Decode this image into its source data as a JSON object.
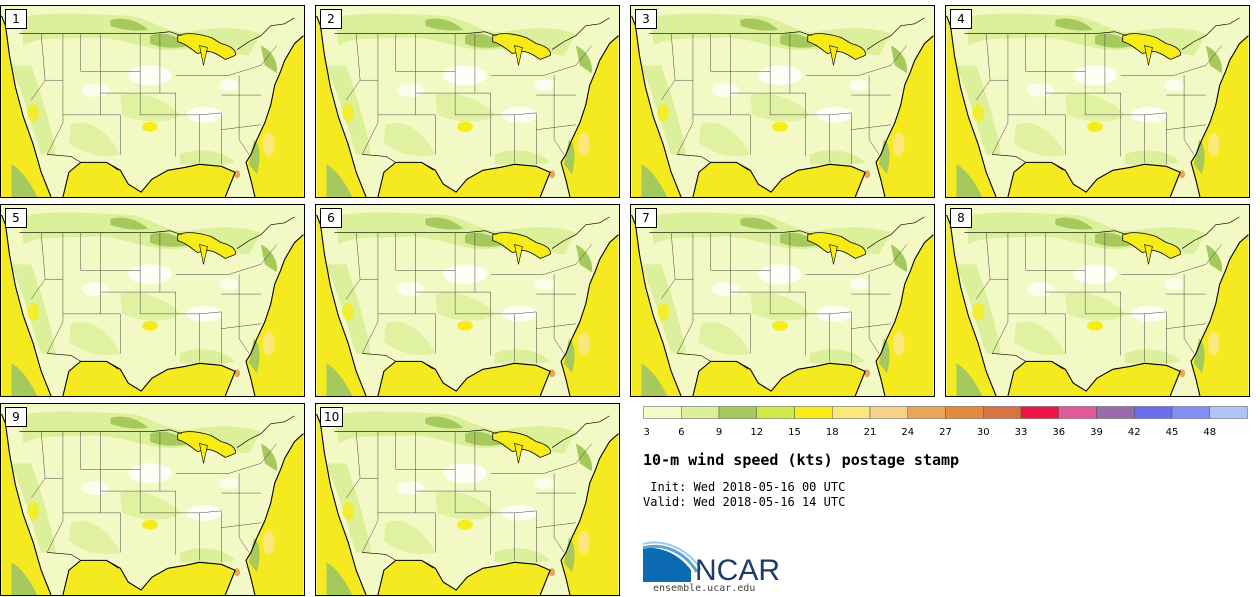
{
  "panels": [
    {
      "label": "1"
    },
    {
      "label": "2"
    },
    {
      "label": "3"
    },
    {
      "label": "4"
    },
    {
      "label": "5"
    },
    {
      "label": "6"
    },
    {
      "label": "7"
    },
    {
      "label": "8"
    },
    {
      "label": "9"
    },
    {
      "label": "10"
    }
  ],
  "colorbar": {
    "ticks": [
      "3",
      "6",
      "9",
      "12",
      "15",
      "18",
      "21",
      "24",
      "27",
      "30",
      "33",
      "36",
      "39",
      "42",
      "45",
      "48"
    ],
    "colors": [
      "#f5fac8",
      "#dcef9a",
      "#a6c95d",
      "#cfe84a",
      "#f7ec17",
      "#fbe87a",
      "#f6d18a",
      "#e9a55a",
      "#e48a3e",
      "#da7342",
      "#ec1548",
      "#e35a9b",
      "#9b6aa8",
      "#6a6bef",
      "#8090f3",
      "#b0c4f8"
    ]
  },
  "title": "10-m wind speed (kts) postage stamp",
  "init": " Init: Wed 2018-05-16 00 UTC",
  "valid": "Valid: Wed 2018-05-16 14 UTC",
  "logo_text": "NCAR",
  "site": "ensemble.ucar.edu",
  "colors": {
    "land_light": "#f3f9c4",
    "land_mid": "#dcef9a",
    "land_dark": "#a6c95d",
    "ocean": "#f4ea1f"
  }
}
